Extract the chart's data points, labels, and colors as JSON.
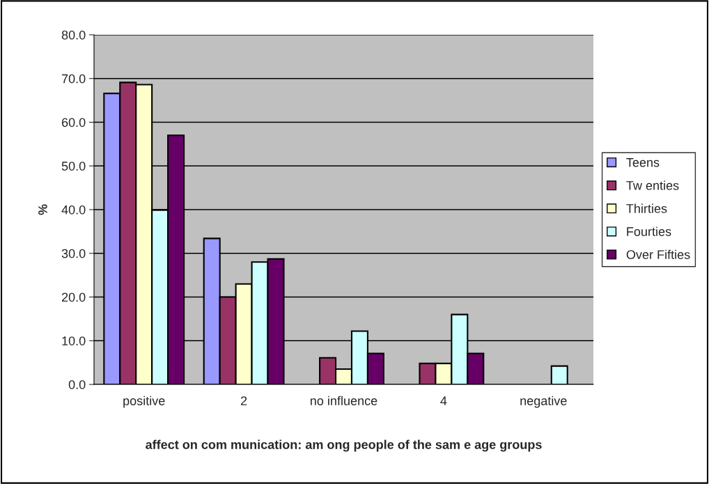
{
  "chart_data": {
    "type": "bar",
    "xlabel": "affect on com munication: am ong people of the sam e age groups",
    "ylabel": "%",
    "categories": [
      "positive",
      "2",
      "no influence",
      "4",
      "negative"
    ],
    "series": [
      {
        "name": "Teens",
        "color": "#9999ff",
        "values": [
          66.6,
          33.4,
          null,
          null,
          null
        ]
      },
      {
        "name": "Tw enties",
        "color": "#993366",
        "values": [
          69.1,
          20.0,
          6.1,
          4.8,
          null
        ]
      },
      {
        "name": "Thirties",
        "color": "#ffffcc",
        "values": [
          68.6,
          23.0,
          3.5,
          4.8,
          null
        ]
      },
      {
        "name": "Fourties",
        "color": "#ccffff",
        "values": [
          39.9,
          28.0,
          12.2,
          16.0,
          4.2
        ]
      },
      {
        "name": "Over Fifties",
        "color": "#660066",
        "values": [
          57.0,
          28.7,
          7.1,
          7.1,
          null
        ]
      }
    ],
    "ylim": [
      0,
      80
    ],
    "yticks": [
      {
        "value": 0,
        "label": "0.0"
      },
      {
        "value": 10,
        "label": "10.0"
      },
      {
        "value": 20,
        "label": "20.0"
      },
      {
        "value": 30,
        "label": "30.0"
      },
      {
        "value": 40,
        "label": "40.0"
      },
      {
        "value": 50,
        "label": "50.0"
      },
      {
        "value": 60,
        "label": "60.0"
      },
      {
        "value": 70,
        "label": "70.0"
      },
      {
        "value": 80,
        "label": "80.0"
      }
    ],
    "grid": "y",
    "legend": "right"
  }
}
